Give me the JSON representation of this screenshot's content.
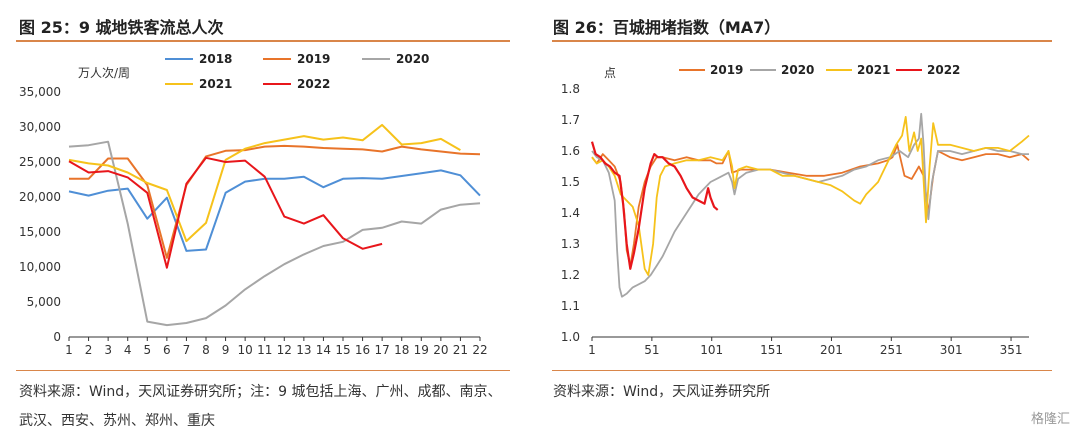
{
  "figures": {
    "left_title": "图 25：9 城地铁客流总人次",
    "right_title": "图 26：百城拥堵指数（MA7）",
    "left_source_line1": "资料来源：Wind，天风证券研究所；注：9 城包括上海、广州、成都、南京、",
    "left_source_line2": "武汉、西安、苏州、郑州、重庆",
    "right_source": "资料来源：Wind，天风证券研究所",
    "watermark": "格隆汇"
  },
  "colors": {
    "2018": "#4f8fd6",
    "2019": "#e8742a",
    "2020": "#a6a6a6",
    "2021": "#f6c21b",
    "2022": "#e8161b",
    "rule": "#d9864a"
  },
  "chart_data": [
    {
      "type": "line",
      "title": "图 25：9 城地铁客流总人次",
      "ylabel": "万人次/周",
      "ylim": [
        0,
        35000
      ],
      "yticks": [
        "0",
        "5,000",
        "10,000",
        "15,000",
        "20,000",
        "25,000",
        "30,000",
        "35,000"
      ],
      "x": [
        1,
        2,
        3,
        4,
        5,
        6,
        7,
        8,
        9,
        10,
        11,
        12,
        13,
        14,
        15,
        16,
        17,
        18,
        19,
        20,
        21,
        22
      ],
      "legend": "top",
      "series": [
        {
          "name": "2018",
          "values": [
            20800,
            20200,
            20900,
            21200,
            16900,
            19900,
            12300,
            12500,
            20600,
            22200,
            22600,
            22600,
            22900,
            21400,
            22600,
            22700,
            22600,
            23000,
            23400,
            23800,
            23100,
            20200
          ]
        },
        {
          "name": "2019",
          "values": [
            22600,
            22600,
            25500,
            25500,
            21700,
            11300,
            21700,
            25800,
            26600,
            26700,
            27200,
            27300,
            27200,
            27000,
            26900,
            26800,
            26500,
            27200,
            26800,
            26500,
            26200,
            26100
          ]
        },
        {
          "name": "2020",
          "values": [
            27200,
            27400,
            27900,
            16200,
            2200,
            1700,
            2000,
            2700,
            4500,
            6800,
            8700,
            10400,
            11800,
            13000,
            13600,
            15300,
            15600,
            16500,
            16200,
            18200,
            18900,
            19100
          ]
        },
        {
          "name": "2021",
          "values": [
            25300,
            24800,
            24500,
            23500,
            22000,
            21000,
            13700,
            16300,
            25300,
            26900,
            27700,
            28200,
            28700,
            28200,
            28500,
            28100,
            30300,
            27500,
            27700,
            28300,
            26700,
            null
          ]
        },
        {
          "name": "2022",
          "values": [
            25100,
            23500,
            23700,
            22800,
            20600,
            9900,
            21900,
            25600,
            25000,
            25200,
            22900,
            17200,
            16200,
            17400,
            14100,
            12600,
            13300,
            null,
            null,
            null,
            null,
            null
          ]
        }
      ]
    },
    {
      "type": "line",
      "title": "图 26：百城拥堵指数（MA7）",
      "ylabel": "点",
      "ylim": [
        1.0,
        1.8
      ],
      "yticks": [
        "1.0",
        "1.1",
        "1.2",
        "1.3",
        "1.4",
        "1.5",
        "1.6",
        "1.7",
        "1.8"
      ],
      "xticks": [
        "1",
        "51",
        "101",
        "151",
        "201",
        "251",
        "301",
        "351"
      ],
      "xlim": [
        1,
        366
      ],
      "legend": "top",
      "series": [
        {
          "name": "2019",
          "points": [
            [
              1,
              1.58
            ],
            [
              5,
              1.56
            ],
            [
              10,
              1.59
            ],
            [
              15,
              1.57
            ],
            [
              20,
              1.55
            ],
            [
              25,
              1.5
            ],
            [
              28,
              1.4
            ],
            [
              30,
              1.28
            ],
            [
              33,
              1.23
            ],
            [
              36,
              1.3
            ],
            [
              40,
              1.42
            ],
            [
              45,
              1.5
            ],
            [
              50,
              1.55
            ],
            [
              55,
              1.58
            ],
            [
              60,
              1.58
            ],
            [
              70,
              1.57
            ],
            [
              80,
              1.58
            ],
            [
              90,
              1.57
            ],
            [
              100,
              1.57
            ],
            [
              105,
              1.56
            ],
            [
              110,
              1.56
            ],
            [
              115,
              1.6
            ],
            [
              118,
              1.53
            ],
            [
              125,
              1.54
            ],
            [
              135,
              1.54
            ],
            [
              150,
              1.54
            ],
            [
              165,
              1.53
            ],
            [
              180,
              1.52
            ],
            [
              195,
              1.52
            ],
            [
              210,
              1.53
            ],
            [
              225,
              1.55
            ],
            [
              240,
              1.56
            ],
            [
              248,
              1.57
            ],
            [
              252,
              1.58
            ],
            [
              256,
              1.62
            ],
            [
              262,
              1.52
            ],
            [
              268,
              1.51
            ],
            [
              274,
              1.55
            ],
            [
              278,
              1.52
            ],
            [
              282,
              1.4
            ],
            [
              286,
              1.52
            ],
            [
              290,
              1.6
            ],
            [
              300,
              1.58
            ],
            [
              310,
              1.57
            ],
            [
              320,
              1.58
            ],
            [
              330,
              1.59
            ],
            [
              340,
              1.59
            ],
            [
              350,
              1.58
            ],
            [
              360,
              1.59
            ],
            [
              366,
              1.57
            ]
          ]
        },
        {
          "name": "2020",
          "points": [
            [
              1,
              1.6
            ],
            [
              5,
              1.58
            ],
            [
              10,
              1.57
            ],
            [
              15,
              1.53
            ],
            [
              20,
              1.44
            ],
            [
              22,
              1.28
            ],
            [
              24,
              1.16
            ],
            [
              26,
              1.13
            ],
            [
              30,
              1.14
            ],
            [
              35,
              1.16
            ],
            [
              40,
              1.17
            ],
            [
              45,
              1.18
            ],
            [
              50,
              1.2
            ],
            [
              55,
              1.23
            ],
            [
              60,
              1.26
            ],
            [
              65,
              1.3
            ],
            [
              70,
              1.34
            ],
            [
              75,
              1.37
            ],
            [
              80,
              1.4
            ],
            [
              85,
              1.43
            ],
            [
              90,
              1.46
            ],
            [
              95,
              1.48
            ],
            [
              100,
              1.5
            ],
            [
              105,
              1.51
            ],
            [
              110,
              1.52
            ],
            [
              115,
              1.53
            ],
            [
              118,
              1.5
            ],
            [
              120,
              1.46
            ],
            [
              123,
              1.51
            ],
            [
              130,
              1.53
            ],
            [
              140,
              1.54
            ],
            [
              150,
              1.54
            ],
            [
              160,
              1.53
            ],
            [
              170,
              1.52
            ],
            [
              180,
              1.51
            ],
            [
              190,
              1.5
            ],
            [
              200,
              1.51
            ],
            [
              210,
              1.52
            ],
            [
              220,
              1.54
            ],
            [
              230,
              1.55
            ],
            [
              240,
              1.57
            ],
            [
              250,
              1.58
            ],
            [
              258,
              1.6
            ],
            [
              265,
              1.58
            ],
            [
              270,
              1.62
            ],
            [
              274,
              1.64
            ],
            [
              276,
              1.72
            ],
            [
              278,
              1.62
            ],
            [
              280,
              1.45
            ],
            [
              282,
              1.38
            ],
            [
              285,
              1.5
            ],
            [
              290,
              1.6
            ],
            [
              300,
              1.6
            ],
            [
              310,
              1.59
            ],
            [
              320,
              1.6
            ],
            [
              330,
              1.61
            ],
            [
              340,
              1.6
            ],
            [
              350,
              1.6
            ],
            [
              360,
              1.59
            ],
            [
              366,
              1.59
            ]
          ]
        },
        {
          "name": "2021",
          "points": [
            [
              1,
              1.58
            ],
            [
              5,
              1.56
            ],
            [
              10,
              1.57
            ],
            [
              15,
              1.55
            ],
            [
              20,
              1.52
            ],
            [
              25,
              1.46
            ],
            [
              30,
              1.44
            ],
            [
              35,
              1.42
            ],
            [
              40,
              1.36
            ],
            [
              45,
              1.22
            ],
            [
              48,
              1.2
            ],
            [
              52,
              1.3
            ],
            [
              55,
              1.45
            ],
            [
              58,
              1.52
            ],
            [
              62,
              1.55
            ],
            [
              70,
              1.56
            ],
            [
              80,
              1.57
            ],
            [
              90,
              1.57
            ],
            [
              100,
              1.58
            ],
            [
              110,
              1.57
            ],
            [
              115,
              1.6
            ],
            [
              118,
              1.55
            ],
            [
              120,
              1.48
            ],
            [
              123,
              1.54
            ],
            [
              130,
              1.55
            ],
            [
              140,
              1.54
            ],
            [
              150,
              1.54
            ],
            [
              160,
              1.52
            ],
            [
              170,
              1.52
            ],
            [
              180,
              1.51
            ],
            [
              190,
              1.5
            ],
            [
              200,
              1.49
            ],
            [
              210,
              1.47
            ],
            [
              220,
              1.44
            ],
            [
              225,
              1.43
            ],
            [
              230,
              1.46
            ],
            [
              240,
              1.5
            ],
            [
              250,
              1.58
            ],
            [
              255,
              1.62
            ],
            [
              260,
              1.65
            ],
            [
              263,
              1.71
            ],
            [
              266,
              1.6
            ],
            [
              270,
              1.66
            ],
            [
              273,
              1.6
            ],
            [
              276,
              1.64
            ],
            [
              280,
              1.37
            ],
            [
              283,
              1.55
            ],
            [
              286,
              1.69
            ],
            [
              290,
              1.62
            ],
            [
              300,
              1.62
            ],
            [
              310,
              1.61
            ],
            [
              320,
              1.6
            ],
            [
              330,
              1.61
            ],
            [
              340,
              1.61
            ],
            [
              350,
              1.6
            ],
            [
              360,
              1.63
            ],
            [
              366,
              1.65
            ]
          ]
        },
        {
          "name": "2022",
          "points": [
            [
              1,
              1.63
            ],
            [
              4,
              1.59
            ],
            [
              8,
              1.58
            ],
            [
              12,
              1.56
            ],
            [
              16,
              1.55
            ],
            [
              20,
              1.53
            ],
            [
              24,
              1.52
            ],
            [
              27,
              1.43
            ],
            [
              30,
              1.3
            ],
            [
              33,
              1.22
            ],
            [
              36,
              1.27
            ],
            [
              40,
              1.35
            ],
            [
              45,
              1.48
            ],
            [
              50,
              1.56
            ],
            [
              53,
              1.59
            ],
            [
              56,
              1.58
            ],
            [
              60,
              1.58
            ],
            [
              65,
              1.56
            ],
            [
              70,
              1.55
            ],
            [
              75,
              1.52
            ],
            [
              80,
              1.48
            ],
            [
              85,
              1.45
            ],
            [
              90,
              1.44
            ],
            [
              95,
              1.43
            ],
            [
              98,
              1.48
            ],
            [
              100,
              1.45
            ],
            [
              103,
              1.42
            ],
            [
              106,
              1.41
            ]
          ]
        }
      ]
    }
  ]
}
